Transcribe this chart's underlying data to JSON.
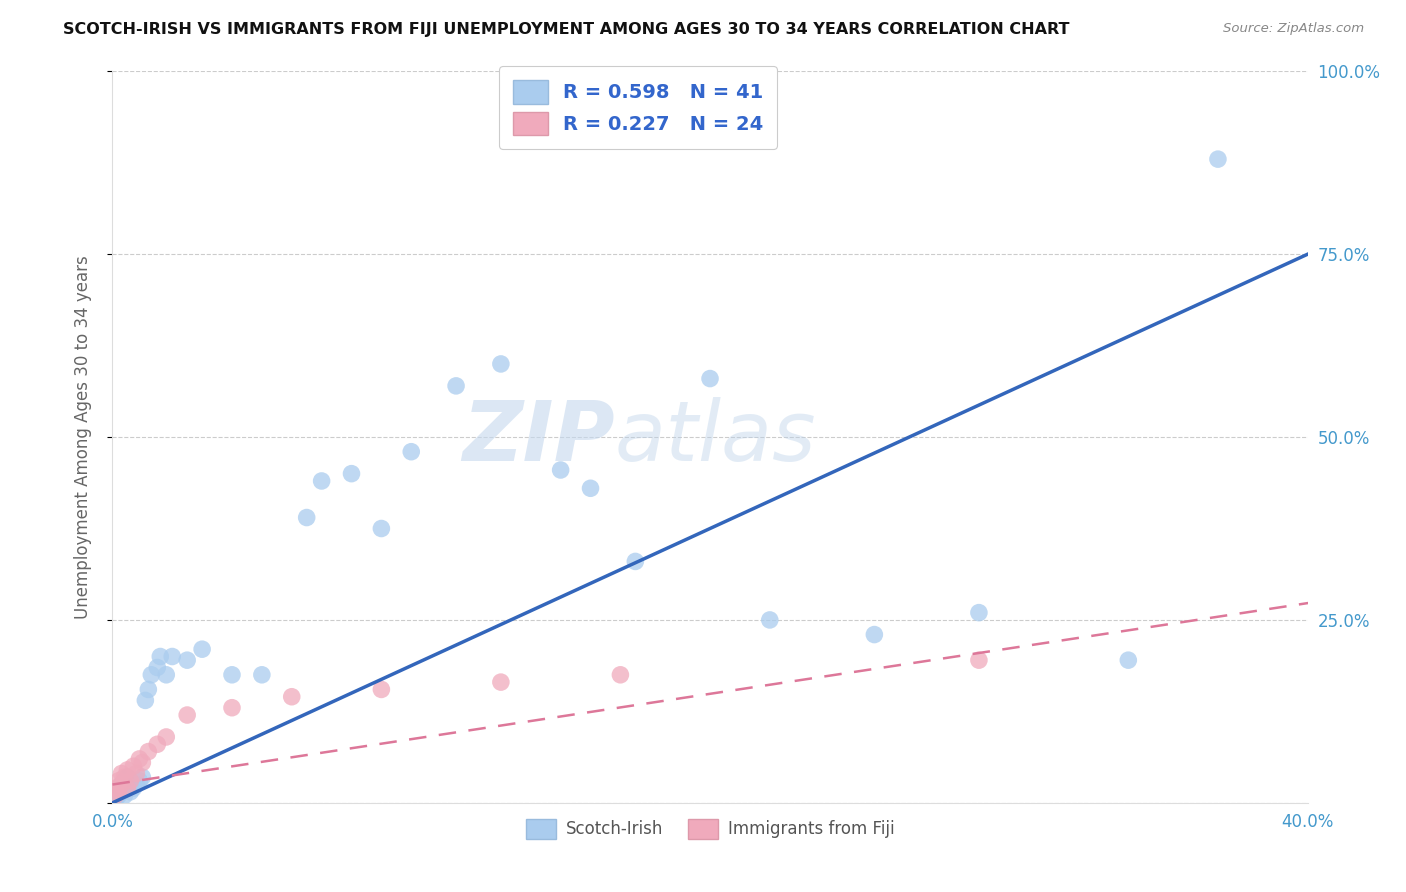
{
  "title": "SCOTCH-IRISH VS IMMIGRANTS FROM FIJI UNEMPLOYMENT AMONG AGES 30 TO 34 YEARS CORRELATION CHART",
  "source": "Source: ZipAtlas.com",
  "ylabel": "Unemployment Among Ages 30 to 34 years",
  "xlim": [
    0,
    0.4
  ],
  "ylim": [
    0,
    1.0
  ],
  "ytick_labels": [
    "",
    "25.0%",
    "50.0%",
    "75.0%",
    "100.0%"
  ],
  "xtick_labels_show": [
    "0.0%",
    "40.0%"
  ],
  "watermark_zip": "ZIP",
  "watermark_atlas": "atlas",
  "legend_r1": "0.598",
  "legend_n1": "41",
  "legend_r2": "0.227",
  "legend_n2": "24",
  "scotch_irish_color": "#aaccee",
  "fiji_color": "#f0aabc",
  "line_blue": "#3366bb",
  "line_pink": "#dd7799",
  "scotch_irish_x": [
    0.001,
    0.002,
    0.002,
    0.003,
    0.003,
    0.004,
    0.004,
    0.005,
    0.005,
    0.006,
    0.007,
    0.008,
    0.009,
    0.01,
    0.011,
    0.012,
    0.013,
    0.015,
    0.016,
    0.018,
    0.02,
    0.025,
    0.03,
    0.04,
    0.05,
    0.065,
    0.07,
    0.08,
    0.09,
    0.1,
    0.115,
    0.13,
    0.15,
    0.16,
    0.175,
    0.2,
    0.22,
    0.255,
    0.29,
    0.34,
    0.37
  ],
  "scotch_irish_y": [
    0.005,
    0.01,
    0.02,
    0.015,
    0.025,
    0.01,
    0.03,
    0.02,
    0.035,
    0.015,
    0.02,
    0.025,
    0.03,
    0.035,
    0.14,
    0.155,
    0.175,
    0.185,
    0.2,
    0.175,
    0.2,
    0.195,
    0.21,
    0.175,
    0.175,
    0.39,
    0.44,
    0.45,
    0.375,
    0.48,
    0.57,
    0.6,
    0.455,
    0.43,
    0.33,
    0.58,
    0.25,
    0.23,
    0.26,
    0.195,
    0.88
  ],
  "fiji_x": [
    0.001,
    0.001,
    0.002,
    0.002,
    0.003,
    0.003,
    0.004,
    0.005,
    0.005,
    0.006,
    0.007,
    0.008,
    0.009,
    0.01,
    0.012,
    0.015,
    0.018,
    0.025,
    0.04,
    0.06,
    0.09,
    0.13,
    0.17,
    0.29
  ],
  "fiji_y": [
    0.01,
    0.02,
    0.015,
    0.03,
    0.025,
    0.04,
    0.035,
    0.02,
    0.045,
    0.03,
    0.05,
    0.04,
    0.06,
    0.055,
    0.07,
    0.08,
    0.09,
    0.12,
    0.13,
    0.145,
    0.155,
    0.165,
    0.175,
    0.195
  ],
  "bottom_legend_scotch": "Scotch-Irish",
  "bottom_legend_fiji": "Immigrants from Fiji"
}
